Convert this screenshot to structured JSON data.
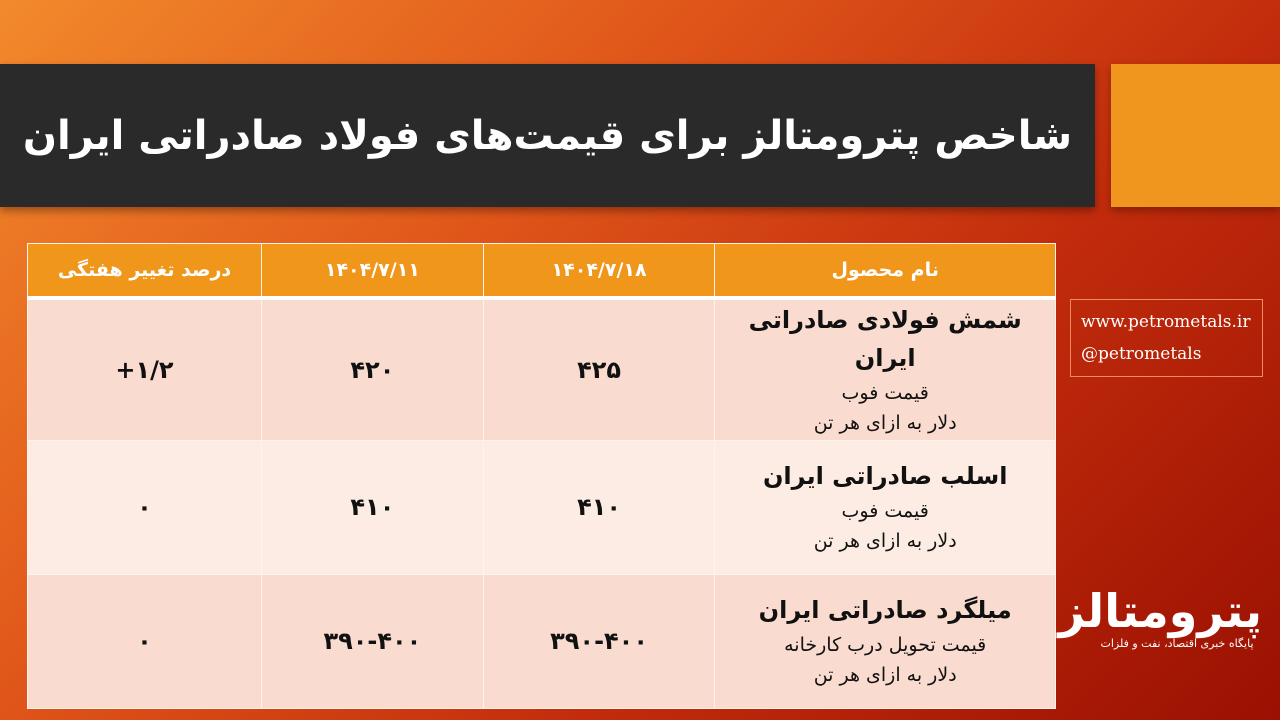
{
  "title": "شاخص پترومتالز برای قیمت‌های فولاد صادراتی ایران",
  "colors": {
    "title_bg": "#2a2a2a",
    "accent": "#f0961e",
    "header": "#f0961a"
  },
  "table": {
    "headers": [
      "نام محصول",
      "۱۴۰۴/۷/۱۸",
      "۱۴۰۴/۷/۱۱",
      "درصد تغییر هفتگی"
    ],
    "rows": [
      {
        "name": "شمش فولادی صادراتی ایران",
        "price_type": "قیمت فوب",
        "unit": "دلار به ازای هر تن",
        "current": "۴۲۵",
        "previous": "۴۲۰",
        "change": "+۱/۲"
      },
      {
        "name": "اسلب صادراتی ایران",
        "price_type": "قیمت فوب",
        "unit": "دلار به ازای هر تن",
        "current": "۴۱۰",
        "previous": "۴۱۰",
        "change": "۰"
      },
      {
        "name": "میلگرد صادراتی ایران",
        "price_type": "قیمت تحویل درب کارخانه",
        "unit": "دلار به ازای هر تن",
        "current": "۳۹۰-۴۰۰",
        "previous": "۳۹۰-۴۰۰",
        "change": "۰"
      }
    ]
  },
  "links": {
    "website": "www.petrometals.ir",
    "handle": "@petrometals"
  },
  "logo": {
    "name": "پترومتالز",
    "tagline": "پایگاه خبری اقتصاد، نفت و فلزات"
  }
}
